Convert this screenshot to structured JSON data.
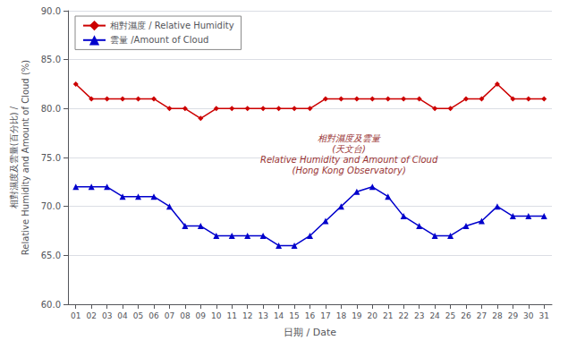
{
  "chart_data": {
    "type": "line",
    "xlabel": "日期 / Date",
    "ylabel": "相對濕度及雲量(百分比) /\nRelative Humidity and Amount of Cloud (%)",
    "x": [
      1,
      2,
      3,
      4,
      5,
      6,
      7,
      8,
      9,
      10,
      11,
      12,
      13,
      14,
      15,
      16,
      17,
      18,
      19,
      20,
      21,
      22,
      23,
      24,
      25,
      26,
      27,
      28,
      29,
      30,
      31
    ],
    "xlim": [
      0.5,
      31.5
    ],
    "xticks": [
      {
        "value": 1,
        "label": "01"
      },
      {
        "value": 2,
        "label": "02"
      },
      {
        "value": 3,
        "label": "03"
      },
      {
        "value": 4,
        "label": "04"
      },
      {
        "value": 5,
        "label": "05"
      },
      {
        "value": 6,
        "label": "06"
      },
      {
        "value": 7,
        "label": "07"
      },
      {
        "value": 8,
        "label": "08"
      },
      {
        "value": 9,
        "label": "09"
      },
      {
        "value": 10,
        "label": "10"
      },
      {
        "value": 11,
        "label": "11"
      },
      {
        "value": 12,
        "label": "12"
      },
      {
        "value": 13,
        "label": "13"
      },
      {
        "value": 14,
        "label": "14"
      },
      {
        "value": 15,
        "label": "15"
      },
      {
        "value": 16,
        "label": "16"
      },
      {
        "value": 17,
        "label": "17"
      },
      {
        "value": 18,
        "label": "18"
      },
      {
        "value": 19,
        "label": "19"
      },
      {
        "value": 20,
        "label": "20"
      },
      {
        "value": 21,
        "label": "21"
      },
      {
        "value": 22,
        "label": "22"
      },
      {
        "value": 23,
        "label": "23"
      },
      {
        "value": 24,
        "label": "24"
      },
      {
        "value": 25,
        "label": "25"
      },
      {
        "value": 26,
        "label": "26"
      },
      {
        "value": 27,
        "label": "27"
      },
      {
        "value": 28,
        "label": "28"
      },
      {
        "value": 29,
        "label": "29"
      },
      {
        "value": 30,
        "label": "30"
      },
      {
        "value": 31,
        "label": "31"
      }
    ],
    "ylim": [
      60.0,
      90.0
    ],
    "yticks": [
      {
        "value": 60.0,
        "label": "60.0"
      },
      {
        "value": 65.0,
        "label": "65.0"
      },
      {
        "value": 70.0,
        "label": "70.0"
      },
      {
        "value": 75.0,
        "label": "75.0"
      },
      {
        "value": 80.0,
        "label": "80.0"
      },
      {
        "value": 85.0,
        "label": "85.0"
      },
      {
        "value": 90.0,
        "label": "90.0"
      }
    ],
    "grid": "y",
    "legend": "upper left",
    "series": [
      {
        "name": "相對濕度 / Relative Humidity",
        "color": "#cc0000",
        "marker": "diamond",
        "values": [
          82.5,
          81.0,
          81.0,
          81.0,
          81.0,
          81.0,
          80.0,
          80.0,
          79.0,
          80.0,
          80.0,
          80.0,
          80.0,
          80.0,
          80.0,
          80.0,
          81.0,
          81.0,
          81.0,
          81.0,
          81.0,
          81.0,
          81.0,
          80.0,
          80.0,
          81.0,
          81.0,
          82.5,
          81.0,
          81.0,
          81.0
        ]
      },
      {
        "name": "雲量 /Amount of Cloud",
        "color": "#0000cc",
        "marker": "triangle",
        "values": [
          72.0,
          72.0,
          72.0,
          71.0,
          71.0,
          71.0,
          70.0,
          68.0,
          68.0,
          67.0,
          67.0,
          67.0,
          67.0,
          66.0,
          66.0,
          67.0,
          68.5,
          70.0,
          71.5,
          72.0,
          71.0,
          69.0,
          68.0,
          67.0,
          67.0,
          68.0,
          68.5,
          70.0,
          69.0,
          69.0,
          69.0
        ]
      }
    ],
    "annotations": [
      {
        "text": "相對濕度及雲量\n(天文台)\nRelative Humidity and Amount of Cloud\n(Hong Kong Observatory)",
        "x": 18.5,
        "y": 77.5,
        "color": "#993333"
      }
    ]
  }
}
